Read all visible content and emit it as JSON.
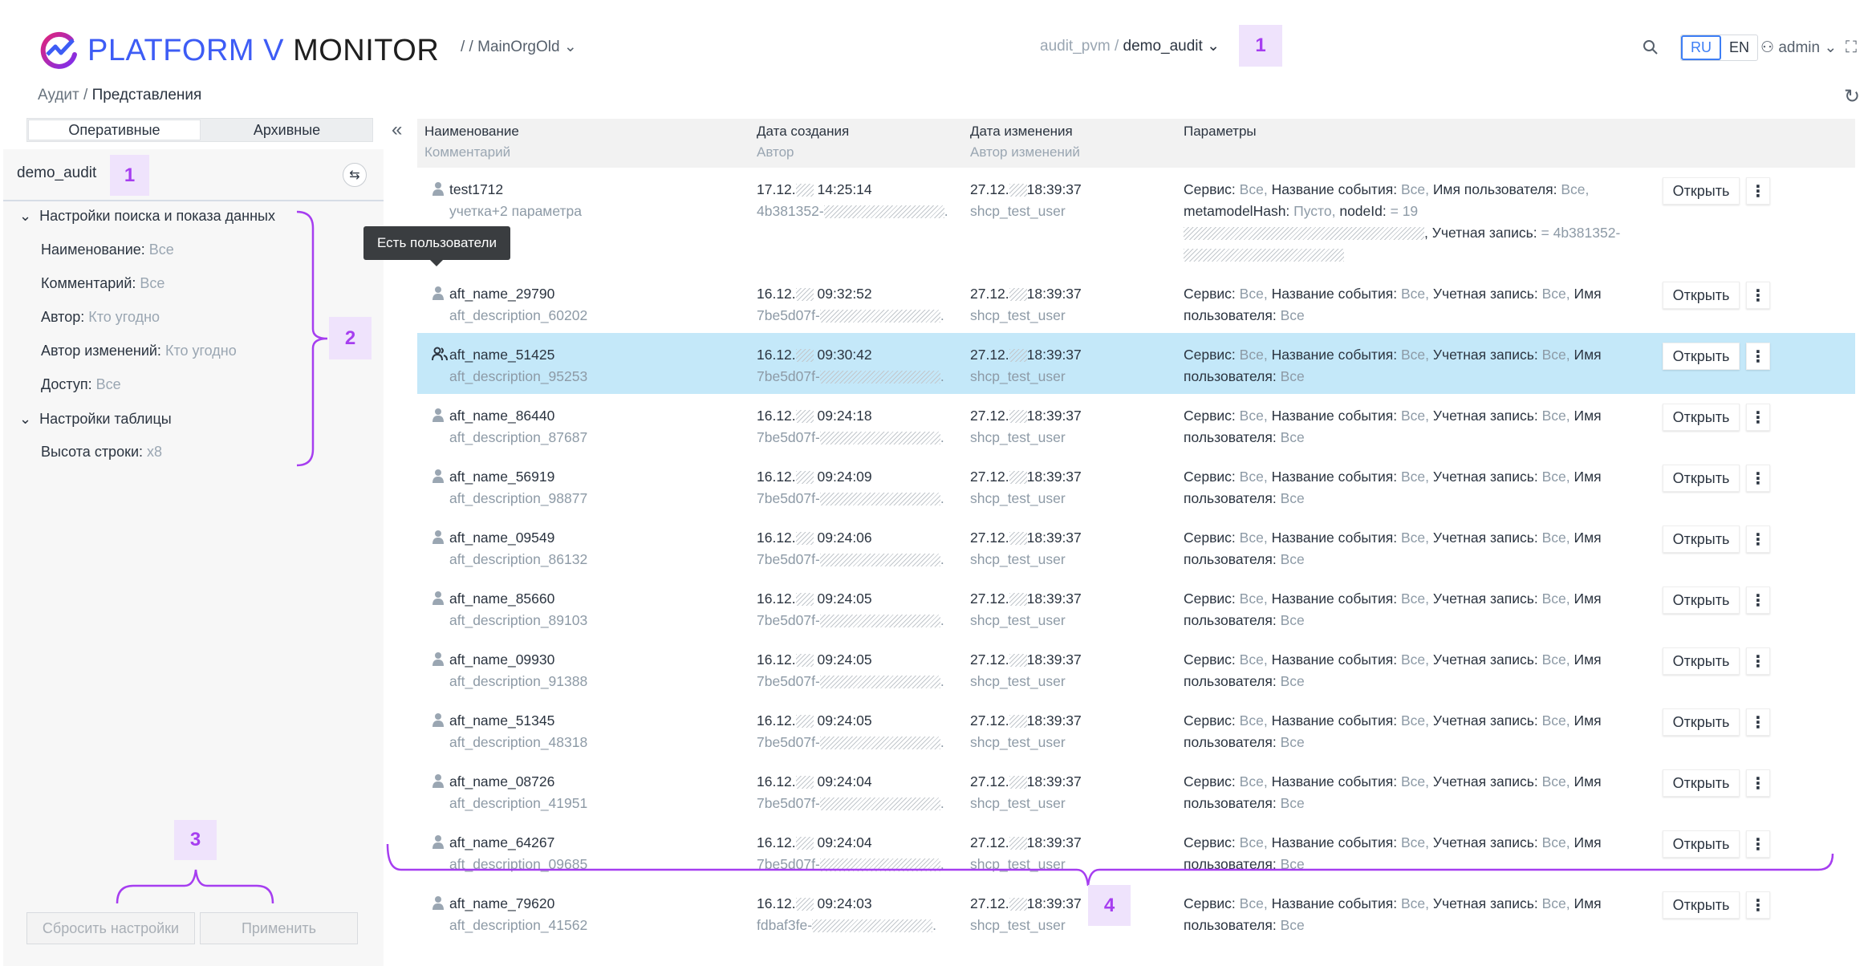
{
  "header": {
    "logo_text_blue": "PLATFORM V",
    "logo_text_dark": "MONITOR",
    "org_path": "/ / MainOrgOld",
    "path_parent": "audit_pvm",
    "path_sep": "/",
    "path_current": "demo_audit",
    "lang_ru": "RU",
    "lang_en": "EN",
    "user": "admin",
    "icons": [
      "search-icon",
      "user-icon",
      "fullscreen-icon",
      "refresh-icon"
    ]
  },
  "breadcrumb": {
    "parent": "Аудит",
    "sep": "/",
    "current": "Представления"
  },
  "sidebar": {
    "tabs": [
      "Оперативные",
      "Архивные"
    ],
    "view_name": "demo_audit",
    "sections": [
      {
        "title": "Настройки поиска и показа данных",
        "items": [
          {
            "label": "Наименование:",
            "value": "Все"
          },
          {
            "label": "Комментарий:",
            "value": "Все"
          },
          {
            "label": "Автор:",
            "value": "Кто угодно"
          },
          {
            "label": "Автор изменений:",
            "value": "Кто угодно"
          },
          {
            "label": "Доступ:",
            "value": "Все"
          }
        ]
      },
      {
        "title": "Настройки таблицы",
        "items": [
          {
            "label": "Высота строки:",
            "value": "x8"
          }
        ]
      }
    ],
    "reset_label": "Сбросить настройки",
    "apply_label": "Применить"
  },
  "table": {
    "headers": {
      "name": "Наименование",
      "comment": "Комментарий",
      "created": "Дата создания",
      "author": "Автор",
      "modified": "Дата изменения",
      "modifier": "Автор изменений",
      "params": "Параметры"
    },
    "open_label": "Открыть",
    "tooltip": "Есть пользователи",
    "rows": [
      {
        "name": "test1712",
        "comment": "учетка+2 параметра",
        "created_day": "17.12.",
        "created_time": "14:25:14",
        "author": "4b381352-",
        "modified_day": "27.12.",
        "modified_time": "18:39:37",
        "modifier": "shcp_test_user",
        "icon": "user-icon",
        "selected": false,
        "params": [
          {
            "label": "Сервис:",
            "value": "Все,"
          },
          {
            "label": "Название события:",
            "value": "Все,"
          },
          {
            "label": "Имя пользователя:",
            "value": "Все,"
          },
          {
            "label": "metamodelHash:",
            "value": "Пусто,"
          },
          {
            "label": "nodeId:",
            "value": "= 19",
            "redacted": true,
            "suffix": ","
          },
          {
            "label": "Учетная запись:",
            "value": "= 4b381352-",
            "redacted": true
          }
        ]
      },
      {
        "name": "aft_name_29790",
        "comment": "aft_description_60202",
        "created_day": "16.12.",
        "created_time": "09:32:52",
        "author": "7be5d07f-",
        "modified_day": "27.12.",
        "modified_time": "18:39:37",
        "modifier": "shcp_test_user",
        "icon": "user-icon",
        "selected": false
      },
      {
        "name": "aft_name_51425",
        "comment": "aft_description_95253",
        "created_day": "16.12.",
        "created_time": "09:30:42",
        "author": "7be5d07f-",
        "modified_day": "27.12.",
        "modified_time": "18:39:37",
        "modifier": "shcp_test_user",
        "icon": "users-icon",
        "selected": true
      },
      {
        "name": "aft_name_86440",
        "comment": "aft_description_87687",
        "created_day": "16.12.",
        "created_time": "09:24:18",
        "author": "7be5d07f-",
        "modified_day": "27.12.",
        "modified_time": "18:39:37",
        "modifier": "shcp_test_user",
        "icon": "user-icon",
        "selected": false
      },
      {
        "name": "aft_name_56919",
        "comment": "aft_description_98877",
        "created_day": "16.12.",
        "created_time": "09:24:09",
        "author": "7be5d07f-",
        "modified_day": "27.12.",
        "modified_time": "18:39:37",
        "modifier": "shcp_test_user",
        "icon": "user-icon",
        "selected": false
      },
      {
        "name": "aft_name_09549",
        "comment": "aft_description_86132",
        "created_day": "16.12.",
        "created_time": "09:24:06",
        "author": "7be5d07f-",
        "modified_day": "27.12.",
        "modified_time": "18:39:37",
        "modifier": "shcp_test_user",
        "icon": "user-icon",
        "selected": false
      },
      {
        "name": "aft_name_85660",
        "comment": "aft_description_89103",
        "created_day": "16.12.",
        "created_time": "09:24:05",
        "author": "7be5d07f-",
        "modified_day": "27.12.",
        "modified_time": "18:39:37",
        "modifier": "shcp_test_user",
        "icon": "user-icon",
        "selected": false
      },
      {
        "name": "aft_name_09930",
        "comment": "aft_description_91388",
        "created_day": "16.12.",
        "created_time": "09:24:05",
        "author": "7be5d07f-",
        "modified_day": "27.12.",
        "modified_time": "18:39:37",
        "modifier": "shcp_test_user",
        "icon": "user-icon",
        "selected": false
      },
      {
        "name": "aft_name_51345",
        "comment": "aft_description_48318",
        "created_day": "16.12.",
        "created_time": "09:24:05",
        "author": "7be5d07f-",
        "modified_day": "27.12.",
        "modified_time": "18:39:37",
        "modifier": "shcp_test_user",
        "icon": "user-icon",
        "selected": false
      },
      {
        "name": "aft_name_08726",
        "comment": "aft_description_41951",
        "created_day": "16.12.",
        "created_time": "09:24:04",
        "author": "7be5d07f-",
        "modified_day": "27.12.",
        "modified_time": "18:39:37",
        "modifier": "shcp_test_user",
        "icon": "user-icon",
        "selected": false
      },
      {
        "name": "aft_name_64267",
        "comment": "aft_description_09685",
        "created_day": "16.12.",
        "created_time": "09:24:04",
        "author": "7be5d07f-",
        "modified_day": "27.12.",
        "modified_time": "18:39:37",
        "modifier": "shcp_test_user",
        "icon": "user-icon",
        "selected": false
      },
      {
        "name": "aft_name_79620",
        "comment": "aft_description_41562",
        "created_day": "16.12.",
        "created_time": "09:24:03",
        "author": "fdbaf3fe-",
        "modified_day": "27.12.",
        "modified_time": "18:39:37",
        "modifier": "shcp_test_user",
        "icon": "user-icon",
        "selected": false
      }
    ],
    "default_params": [
      {
        "label": "Сервис:",
        "value": "Все,"
      },
      {
        "label": "Название события:",
        "value": "Все,"
      },
      {
        "label": "Учетная запись:",
        "value": "Все,"
      },
      {
        "label": "Имя пользователя:",
        "value": "Все"
      }
    ]
  },
  "annotations": {
    "m1": "1",
    "m2": "2",
    "m3": "3",
    "m4": "4",
    "color": "#a63ef0"
  }
}
